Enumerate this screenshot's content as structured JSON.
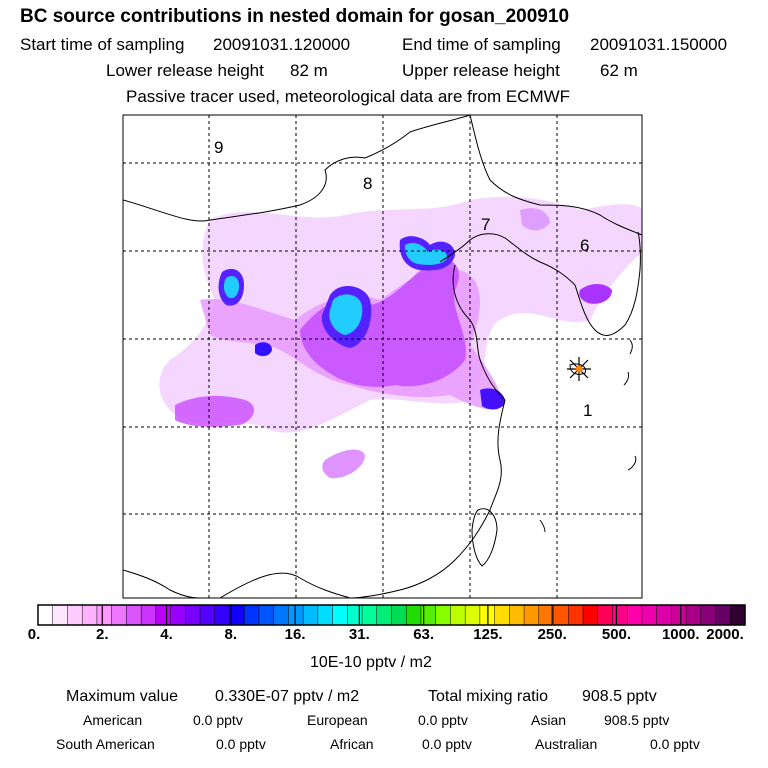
{
  "header": {
    "title": "BC  source contributions in nested domain for gosan_200910",
    "start_label": "Start time of sampling",
    "start_value": "20091031.120000",
    "end_label": "End time of sampling",
    "end_value": "20091031.150000",
    "lower_label": "Lower release height",
    "lower_value": "82 m",
    "upper_label": "Upper release height",
    "upper_value": "62 m",
    "tracer_note": "Passive tracer used, meteorological data are from ECMWF"
  },
  "map": {
    "region_labels": [
      "9",
      "8",
      "7",
      "6",
      "1"
    ],
    "receptor": "gosan",
    "receptor_color": "#ff8800"
  },
  "colorbar": {
    "ticks": [
      "0.",
      "2.",
      "4.",
      "8.",
      "16.",
      "31.",
      "63.",
      "125.",
      "250.",
      "500.",
      "1000.",
      "2000."
    ],
    "colors": [
      "#ffffff",
      "#ffe6ff",
      "#ffccff",
      "#ffb3ff",
      "#ff99ff",
      "#ee77ff",
      "#dd55ff",
      "#cc33ff",
      "#bb00ff",
      "#9900ff",
      "#7700ff",
      "#5500ff",
      "#3300ff",
      "#1100ff",
      "#0033ff",
      "#0055ff",
      "#0077ff",
      "#0099ff",
      "#00bbff",
      "#00ddff",
      "#00ffff",
      "#00ffcc",
      "#00ff99",
      "#00ee77",
      "#00dd55",
      "#22dd00",
      "#55ee00",
      "#88ff00",
      "#bbff00",
      "#ddff00",
      "#ffff00",
      "#ffdd00",
      "#ffbb00",
      "#ff9900",
      "#ff7700",
      "#ff5500",
      "#ff3300",
      "#ff0000",
      "#ff0055",
      "#ff0088",
      "#ff00aa",
      "#ee00aa",
      "#dd00aa",
      "#cc0099",
      "#aa0088",
      "#880077",
      "#660066",
      "#330033"
    ],
    "units": "10E-10 pptv / m2"
  },
  "stats": {
    "max_label": "Maximum value",
    "max_value": "0.330E-07 pptv / m2",
    "total_label": "Total mixing ratio",
    "total_value": "908.5 pptv",
    "continents": [
      {
        "name": "American",
        "value": "0.0 pptv"
      },
      {
        "name": "European",
        "value": "0.0 pptv"
      },
      {
        "name": "Asian",
        "value": "908.5 pptv"
      },
      {
        "name": "South American",
        "value": "0.0 pptv"
      },
      {
        "name": "African",
        "value": "0.0 pptv"
      },
      {
        "name": "Australian",
        "value": "0.0 pptv"
      }
    ]
  }
}
